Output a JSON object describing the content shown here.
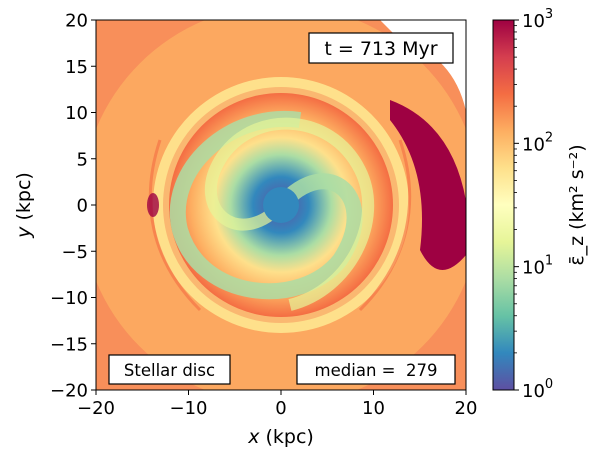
{
  "chart_data": {
    "type": "heatmap",
    "title": "",
    "xlabel": "x (kpc)",
    "ylabel": "y (kpc)",
    "xlim": [
      -20,
      20
    ],
    "ylim": [
      -20,
      20
    ],
    "xticks": [
      -20,
      -10,
      0,
      10,
      20
    ],
    "yticks": [
      -20,
      -15,
      -10,
      -5,
      0,
      5,
      10,
      15,
      20
    ],
    "xtick_labels": [
      "−20",
      "−10",
      "0",
      "10",
      "20"
    ],
    "ytick_labels": [
      "−20",
      "−15",
      "−10",
      "−5",
      "0",
      "5",
      "10",
      "15",
      "20"
    ],
    "colorbar": {
      "scale": "log",
      "range": [
        1,
        1000
      ],
      "colormap": "Spectral_r",
      "colors": [
        "#5e4fa2",
        "#3288bd",
        "#66c2a5",
        "#abdda4",
        "#e6f598",
        "#ffffbf",
        "#fee08b",
        "#fdae61",
        "#f46d43",
        "#d53e4f",
        "#9e0142"
      ],
      "tick_bases": [
        "10",
        "10",
        "10",
        "10"
      ],
      "tick_exponents": [
        "0",
        "1",
        "2",
        "3"
      ],
      "tick_values": [
        1,
        10,
        100,
        1000
      ],
      "label": "ε̄_z (km² s⁻²)"
    },
    "annotations": {
      "time": "t = 713 Myr",
      "component": "Stellar disc",
      "median": "median =  279"
    },
    "median_value": 279,
    "time_myr": 713
  }
}
